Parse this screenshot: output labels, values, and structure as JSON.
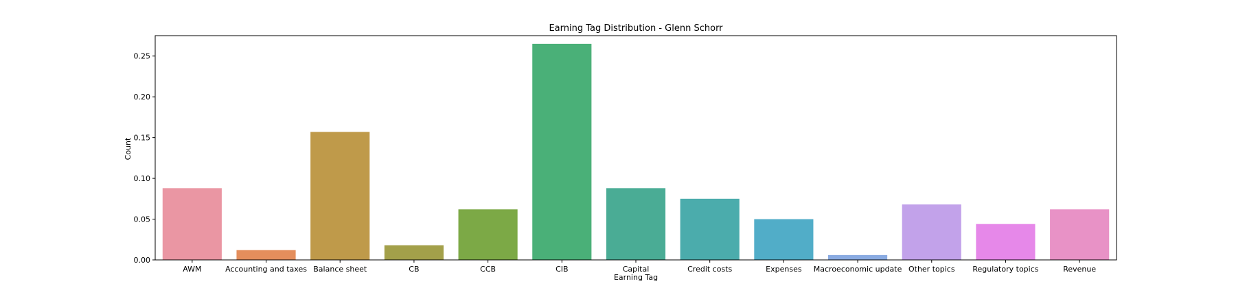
{
  "chart_data": {
    "type": "bar",
    "title": "Earning Tag Distribution - Glenn Schorr",
    "xlabel": "Earning Tag",
    "ylabel": "Count",
    "ylim": [
      0,
      0.275
    ],
    "yticks": [
      0.0,
      0.05,
      0.1,
      0.15,
      0.2,
      0.25
    ],
    "ytick_labels": [
      "0.00",
      "0.05",
      "0.10",
      "0.15",
      "0.20",
      "0.25"
    ],
    "grid": false,
    "legend": "none",
    "categories": [
      "AWM",
      "Accounting and taxes",
      "Balance sheet",
      "CB",
      "CCB",
      "CIB",
      "Capital",
      "Credit costs",
      "Expenses",
      "Macroeconomic update",
      "Other topics",
      "Regulatory topics",
      "Revenue"
    ],
    "values": [
      0.088,
      0.012,
      0.157,
      0.018,
      0.062,
      0.265,
      0.088,
      0.075,
      0.05,
      0.006,
      0.068,
      0.044,
      0.062
    ],
    "colors": [
      "#ea96a3",
      "#e48e5c",
      "#bf9a4a",
      "#a3a04a",
      "#7ca946",
      "#4ab078",
      "#4aac95",
      "#4bacac",
      "#51adc8",
      "#8aabe2",
      "#c2a2ea",
      "#e688e9",
      "#e892c6"
    ]
  }
}
